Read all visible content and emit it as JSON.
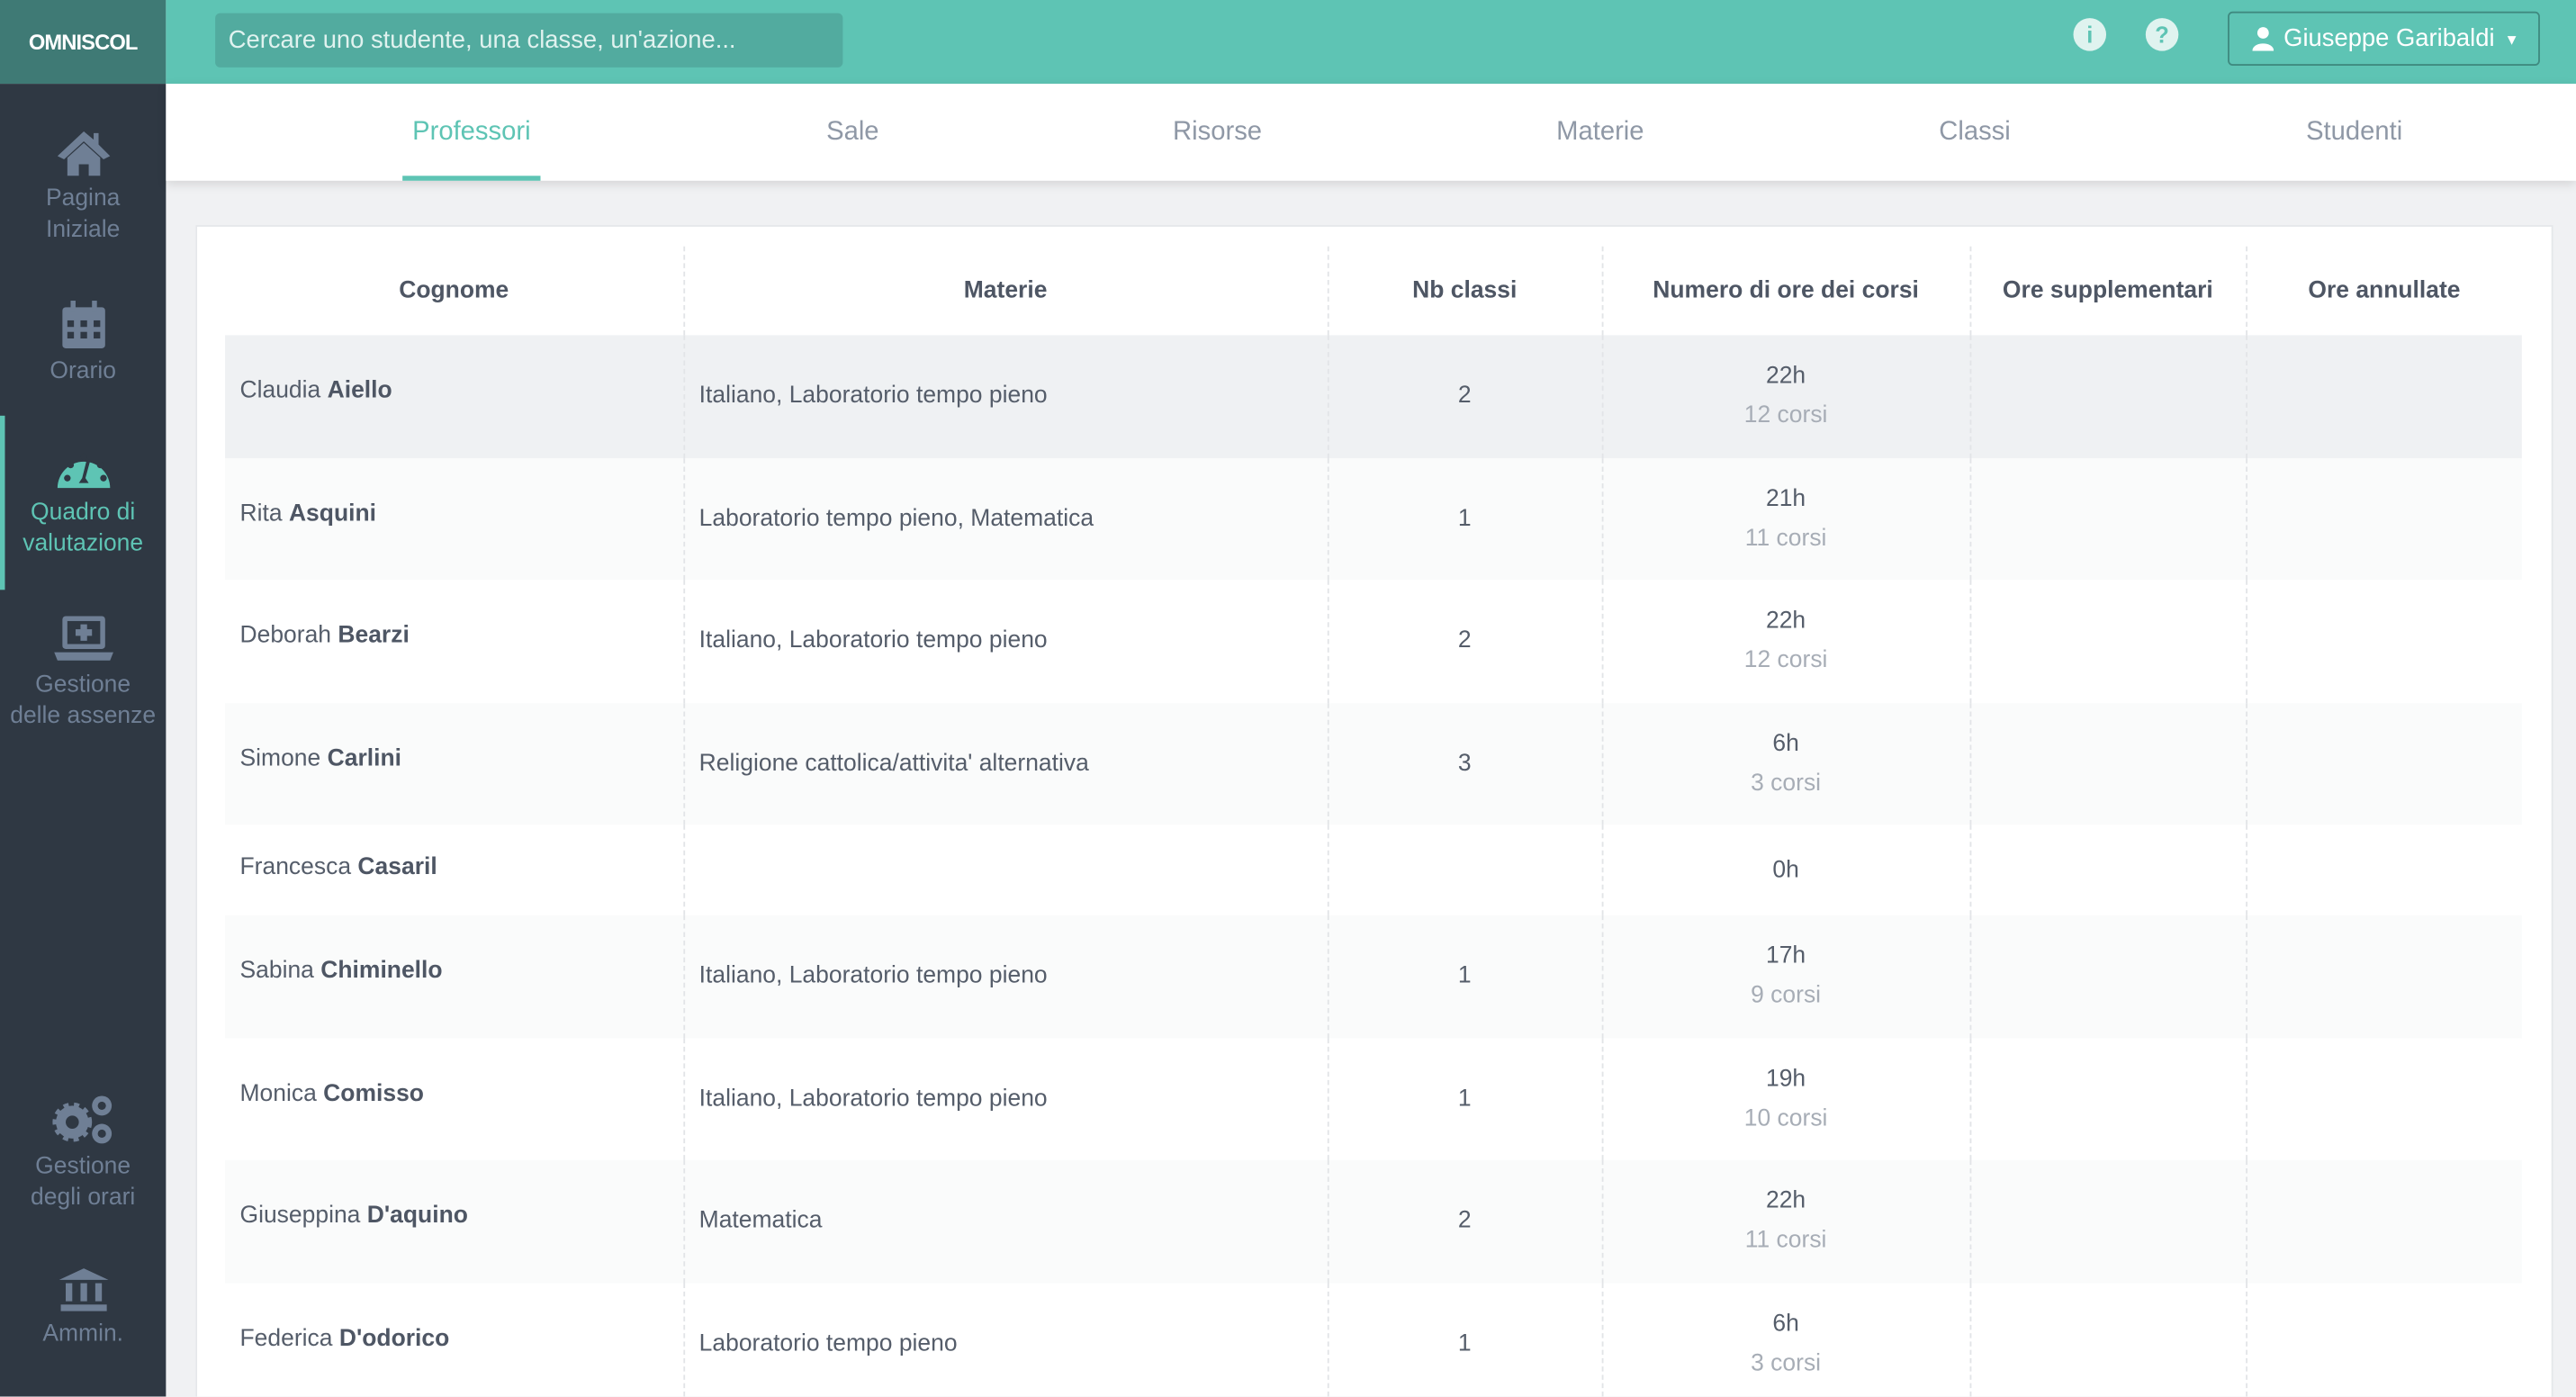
{
  "app": {
    "logo": "OMNISCOL",
    "search_placeholder": "Cercare uno studente, una classe, un'azione...",
    "user_name": "Giuseppe Garibaldi",
    "accent": "#5ec4b4"
  },
  "sidebar": {
    "items": [
      {
        "label1": "Pagina",
        "label2": "Iniziale",
        "icon": "home-icon"
      },
      {
        "label1": "Orario",
        "label2": "",
        "icon": "calendar-icon"
      },
      {
        "label1": "Quadro di",
        "label2": "valutazione",
        "icon": "dashboard-icon",
        "active": true
      },
      {
        "label1": "Gestione",
        "label2": "delle assenze",
        "icon": "laptop-plus-icon"
      },
      {
        "label1": "Gestione",
        "label2": "degli orari",
        "icon": "gears-icon"
      },
      {
        "label1": "Ammin.",
        "label2": "",
        "icon": "bank-icon"
      }
    ]
  },
  "tabs": [
    {
      "label": "Professori",
      "active": true
    },
    {
      "label": "Sale"
    },
    {
      "label": "Risorse"
    },
    {
      "label": "Materie"
    },
    {
      "label": "Classi"
    },
    {
      "label": "Studenti"
    }
  ],
  "table": {
    "headers": [
      "Cognome",
      "Materie",
      "Nb classi",
      "Numero di ore dei corsi",
      "Ore supplementari",
      "Ore annullate"
    ],
    "rows": [
      {
        "first": "Claudia",
        "last": "Aiello",
        "materie": "Italiano, Laboratorio tempo pieno",
        "classi": "2",
        "ore": "22h",
        "corsi": "12 corsi",
        "supp": "",
        "annullate": ""
      },
      {
        "first": "Rita",
        "last": "Asquini",
        "materie": "Laboratorio tempo pieno, Matematica",
        "classi": "1",
        "ore": "21h",
        "corsi": "11 corsi",
        "supp": "",
        "annullate": ""
      },
      {
        "first": "Deborah",
        "last": "Bearzi",
        "materie": "Italiano, Laboratorio tempo pieno",
        "classi": "2",
        "ore": "22h",
        "corsi": "12 corsi",
        "supp": "",
        "annullate": ""
      },
      {
        "first": "Simone",
        "last": "Carlini",
        "materie": "Religione cattolica/attivita' alternativa",
        "classi": "3",
        "ore": "6h",
        "corsi": "3 corsi",
        "supp": "",
        "annullate": ""
      },
      {
        "first": "Francesca",
        "last": "Casaril",
        "materie": "",
        "classi": "",
        "ore": "0h",
        "corsi": "",
        "supp": "",
        "annullate": ""
      },
      {
        "first": "Sabina",
        "last": "Chiminello",
        "materie": "Italiano, Laboratorio tempo pieno",
        "classi": "1",
        "ore": "17h",
        "corsi": "9 corsi",
        "supp": "",
        "annullate": ""
      },
      {
        "first": "Monica",
        "last": "Comisso",
        "materie": "Italiano, Laboratorio tempo pieno",
        "classi": "1",
        "ore": "19h",
        "corsi": "10 corsi",
        "supp": "",
        "annullate": ""
      },
      {
        "first": "Giuseppina",
        "last": "D'aquino",
        "materie": "Matematica",
        "classi": "2",
        "ore": "22h",
        "corsi": "11 corsi",
        "supp": "",
        "annullate": ""
      },
      {
        "first": "Federica",
        "last": "D'odorico",
        "materie": "Laboratorio tempo pieno",
        "classi": "1",
        "ore": "6h",
        "corsi": "3 corsi",
        "supp": "",
        "annullate": ""
      }
    ]
  }
}
